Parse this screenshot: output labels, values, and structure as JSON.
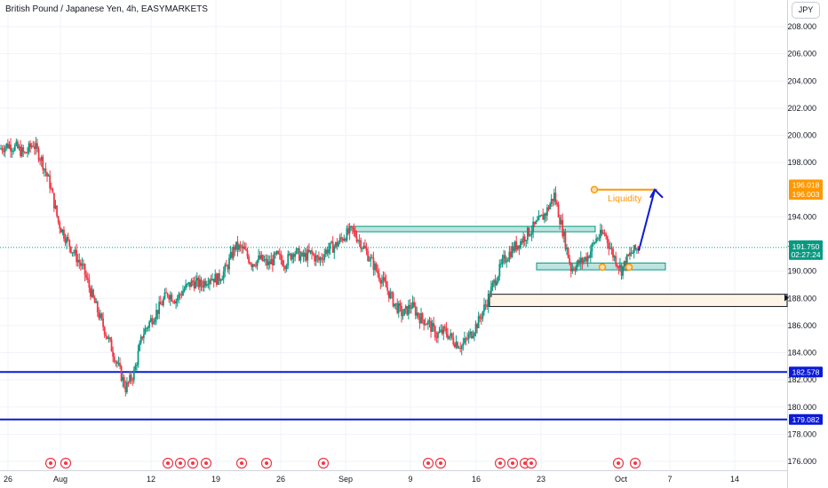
{
  "header": {
    "title": "British Pound / Japanese Yen, 4h, EASYMARKETS",
    "currency": "JPY"
  },
  "chart_data": {
    "type": "candlestick",
    "symbol": "British Pound / Japanese Yen",
    "interval": "4h",
    "broker": "EASYMARKETS",
    "ylim": [
      175.5,
      209.5
    ],
    "y_ticks": [
      "208.000",
      "206.000",
      "204.000",
      "202.000",
      "200.000",
      "198.000",
      "194.000",
      "192.000",
      "190.000",
      "188.000",
      "186.000",
      "184.000",
      "182.000",
      "180.000",
      "178.000",
      "176.000"
    ],
    "x_ticks": [
      "26",
      "Aug",
      "12",
      "19",
      "26",
      "Sep",
      "9",
      "16",
      "23",
      "Oct",
      "7",
      "14"
    ],
    "price_path_close": [
      199.0,
      199.3,
      199.1,
      198.6,
      199.4,
      198.2,
      196.4,
      193.6,
      192.3,
      191.2,
      190.1,
      188.2,
      186.5,
      184.9,
      183.2,
      181.4,
      182.5,
      185.3,
      186.4,
      187.3,
      188.4,
      187.9,
      188.7,
      189.2,
      189.0,
      189.6,
      189.4,
      190.2,
      191.8,
      191.6,
      190.6,
      190.9,
      190.5,
      191.1,
      190.6,
      191.5,
      191.0,
      191.3,
      190.8,
      191.6,
      191.9,
      192.6,
      193.0,
      192.1,
      191.0,
      189.9,
      188.8,
      187.6,
      186.8,
      187.5,
      186.6,
      186.2,
      185.3,
      185.6,
      184.9,
      184.5,
      185.3,
      186.3,
      187.8,
      189.4,
      190.8,
      191.6,
      192.2,
      192.9,
      193.5,
      194.3,
      195.6,
      193.0,
      190.2,
      190.6,
      191.1,
      192.4,
      192.8,
      191.2,
      190.1,
      191.2,
      191.75
    ],
    "current_price": {
      "value": "191.750",
      "countdown": "02:27:24"
    },
    "price_tags": [
      {
        "value": "196.018",
        "color": "#ff9800"
      },
      {
        "value": "196.003",
        "color": "#ff9800"
      },
      {
        "value": "182.578",
        "color": "#0b1ad6"
      },
      {
        "value": "179.082",
        "color": "#0b1ad6"
      }
    ],
    "horizontal_lines": [
      {
        "price": 182.578,
        "color": "#0b1ad6"
      },
      {
        "price": 179.082,
        "color": "#0b1ad6"
      }
    ],
    "zones": [
      {
        "from_x": "~Sep 2",
        "to_x": "~Sep 27",
        "top": 193.3,
        "bottom": 192.9,
        "fill": "#b2dfdb",
        "stroke": "#089981"
      },
      {
        "from_x": "~Sep 23",
        "to_x": "~Oct 6",
        "top": 190.6,
        "bottom": 190.1,
        "fill": "#b2dfdb",
        "stroke": "#089981"
      },
      {
        "from_x": "~Sep 18",
        "to_x": "beyond Oct 14",
        "top": 188.3,
        "bottom": 187.4,
        "fill": "#fff3e0",
        "stroke": "#131722"
      }
    ],
    "annotation": {
      "text": "Liquidity",
      "level": 196.0,
      "color": "#ff9800"
    },
    "projection": {
      "color": "#0b1ad6",
      "from": 191.5,
      "to": 196.0
    },
    "colors": {
      "up": "#089981",
      "down": "#f23645",
      "grid": "#f0f3fa",
      "current_line": "#089981"
    }
  }
}
